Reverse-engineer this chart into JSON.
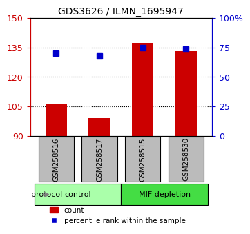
{
  "title": "GDS3626 / ILMN_1695947",
  "samples": [
    "GSM258516",
    "GSM258517",
    "GSM258515",
    "GSM258530"
  ],
  "bar_values": [
    106,
    99,
    137,
    133
  ],
  "percentile_values": [
    70,
    68,
    75,
    74
  ],
  "bar_baseline": 90,
  "left_ylim": [
    90,
    150
  ],
  "left_yticks": [
    90,
    105,
    120,
    135,
    150
  ],
  "right_ylim": [
    0,
    100
  ],
  "right_yticks": [
    0,
    25,
    50,
    75,
    100
  ],
  "right_yticklabels": [
    "0",
    "25",
    "50",
    "75",
    "100%"
  ],
  "bar_color": "#cc0000",
  "marker_color": "#0000cc",
  "groups": [
    {
      "label": "control",
      "samples": [
        "GSM258516",
        "GSM258517"
      ],
      "color": "#aaffaa"
    },
    {
      "label": "MIF depletion",
      "samples": [
        "GSM258515",
        "GSM258530"
      ],
      "color": "#44dd44"
    }
  ],
  "protocol_label": "protocol",
  "legend_bar_label": "count",
  "legend_marker_label": "percentile rank within the sample",
  "tick_color_left": "#cc0000",
  "tick_color_right": "#0000cc",
  "grid_color": "#000000",
  "sample_box_color": "#bbbbbb",
  "bar_width": 0.5,
  "dotted_grid_values": [
    105,
    120,
    135
  ]
}
